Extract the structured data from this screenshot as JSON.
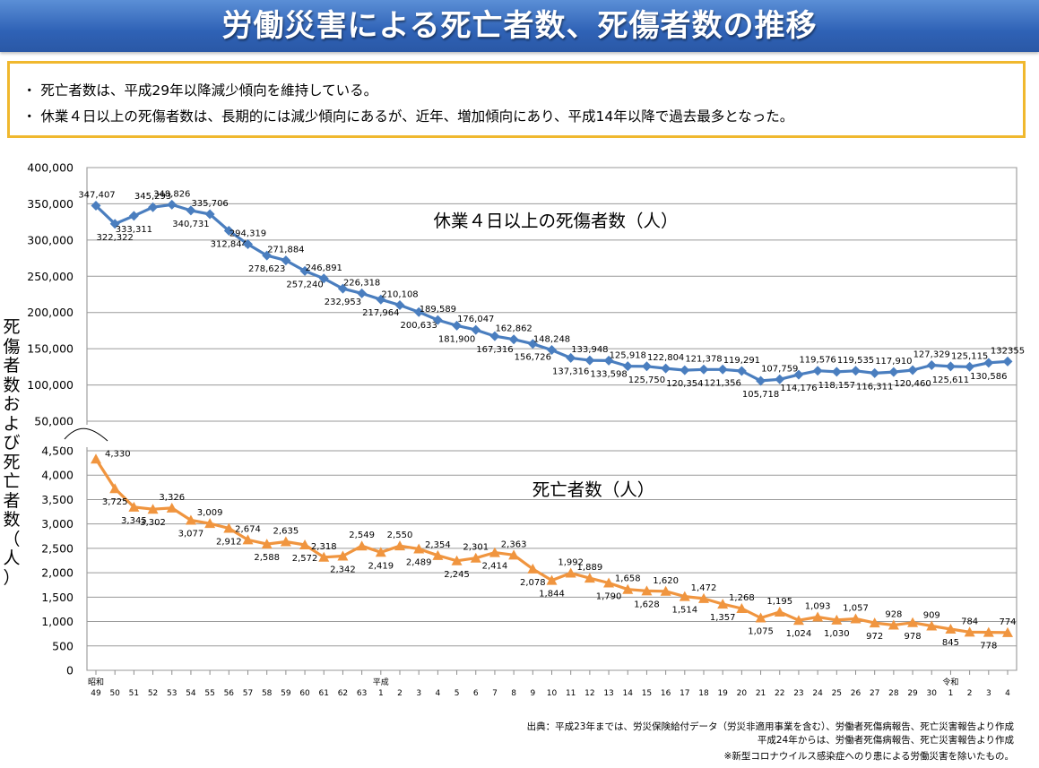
{
  "header": {
    "title": "労働災害による死亡者数、死傷者数の推移"
  },
  "summary": {
    "bullets": [
      "・ 死亡者数は、平成29年以降減少傾向を維持している。",
      "・ 休業４日以上の死傷者数は、長期的には減少傾向にあるが、近年、増加傾向にあり、平成14年以降で過去最多となった。"
    ]
  },
  "colors": {
    "injured": "#4a7ebf",
    "deaths": "#f0953f",
    "banner": "#2f62b6",
    "frame": "#f0b82e"
  },
  "chart_data": {
    "type": "line",
    "ylabel": "死傷者数および死亡者数（人）",
    "x_categories": [
      "49",
      "50",
      "51",
      "52",
      "53",
      "54",
      "55",
      "56",
      "57",
      "58",
      "59",
      "60",
      "61",
      "62",
      "63",
      "1",
      "2",
      "3",
      "4",
      "5",
      "6",
      "7",
      "8",
      "9",
      "10",
      "11",
      "12",
      "13",
      "14",
      "15",
      "16",
      "17",
      "18",
      "19",
      "20",
      "21",
      "22",
      "23",
      "24",
      "25",
      "26",
      "27",
      "28",
      "29",
      "30",
      "1",
      "2",
      "3",
      "4"
    ],
    "era_marks": [
      {
        "index": 0,
        "label": "昭和"
      },
      {
        "index": 15,
        "label": "平成"
      },
      {
        "index": 45,
        "label": "令和"
      }
    ],
    "upper_axis": {
      "ylim": [
        50000,
        400000
      ],
      "ticks": [
        "400,000",
        "350,000",
        "300,000",
        "250,000",
        "200,000",
        "150,000",
        "100,000",
        "50,000"
      ],
      "tick_values": [
        400000,
        350000,
        300000,
        250000,
        200000,
        150000,
        100000,
        50000
      ]
    },
    "lower_axis": {
      "ylim": [
        0,
        4500
      ],
      "ticks": [
        "4,500",
        "4,000",
        "3,500",
        "3,000",
        "2,500",
        "2,000",
        "1,500",
        "1,000",
        "500",
        "0"
      ],
      "tick_values": [
        4500,
        4000,
        3500,
        3000,
        2500,
        2000,
        1500,
        1000,
        500,
        0
      ]
    },
    "series": [
      {
        "name": "休業４日以上の死傷者数（人）",
        "marker": "diamond",
        "values": [
          347407,
          322322,
          333311,
          345293,
          348826,
          340731,
          335706,
          312844,
          294319,
          278623,
          271884,
          257240,
          246891,
          232953,
          226318,
          217964,
          210108,
          200633,
          189589,
          181900,
          176047,
          167316,
          162862,
          156726,
          148248,
          137316,
          133948,
          133598,
          125918,
          125750,
          122804,
          120354,
          121378,
          121356,
          119291,
          105718,
          107759,
          114176,
          119576,
          118157,
          119535,
          116311,
          117910,
          120460,
          127329,
          125611,
          125115,
          130586,
          132355
        ],
        "labels": [
          "347,407",
          "322,322",
          "333,311",
          "345,293",
          "348,826",
          "340,731",
          "335,706",
          "312,844",
          "294,319",
          "278,623",
          "271,884",
          "257,240",
          "246,891",
          "232,953",
          "226,318",
          "217,964",
          "210,108",
          "200,633",
          "189,589",
          "181,900",
          "176,047",
          "167,316",
          "162,862",
          "156,726",
          "148,248",
          "137,316",
          "133,948",
          "133,598",
          "125,918",
          "125,750",
          "122,804",
          "120,354",
          "121,378",
          "121,356",
          "119,291",
          "105,718",
          "107,759",
          "114,176",
          "119,576",
          "118,157",
          "119,535",
          "116,311",
          "117,910",
          "120,460",
          "127,329",
          "125,611",
          "125,115",
          "130,586",
          "132355"
        ],
        "label_pos": [
          "a",
          "b",
          "b",
          "a",
          "a",
          "b",
          "a",
          "b",
          "a",
          "b",
          "a",
          "b",
          "a",
          "b",
          "a",
          "b",
          "a",
          "b",
          "a",
          "b",
          "a",
          "b",
          "a",
          "b",
          "a",
          "b",
          "a",
          "b",
          "a",
          "b",
          "a",
          "b",
          "a",
          "b",
          "a",
          "b",
          "a",
          "b",
          "a",
          "b",
          "a",
          "b",
          "a",
          "b",
          "a",
          "b",
          "a",
          "b",
          "a"
        ]
      },
      {
        "name": "死亡者数（人）",
        "marker": "triangle",
        "values": [
          4330,
          3725,
          3345,
          3302,
          3326,
          3077,
          3009,
          2912,
          2674,
          2588,
          2635,
          2572,
          2318,
          2342,
          2549,
          2419,
          2550,
          2489,
          2354,
          2245,
          2301,
          2414,
          2363,
          2078,
          1844,
          1992,
          1889,
          1790,
          1658,
          1628,
          1620,
          1514,
          1472,
          1357,
          1268,
          1075,
          1195,
          1024,
          1093,
          1030,
          1057,
          972,
          928,
          978,
          909,
          845,
          784,
          778,
          774
        ],
        "labels": [
          "4,330",
          "3,725",
          "3,345",
          "3,302",
          "3,326",
          "3,077",
          "3,009",
          "2,912",
          "2,674",
          "2,588",
          "2,635",
          "2,572",
          "2,318",
          "2,342",
          "2,549",
          "2,419",
          "2,550",
          "2,489",
          "2,354",
          "2,245",
          "2,301",
          "2,414",
          "2,363",
          "2,078",
          "1,844",
          "1,992",
          "1,889",
          "1,790",
          "1,658",
          "1,628",
          "1,620",
          "1,514",
          "1,472",
          "1,357",
          "1,268",
          "1,075",
          "1,195",
          "1,024",
          "1,093",
          "1,030",
          "1,057",
          "972",
          "928",
          "978",
          "909",
          "845",
          "784",
          "778",
          "774"
        ],
        "label_pos": [
          "r",
          "b",
          "b",
          "b",
          "a",
          "b",
          "a",
          "b",
          "a",
          "b",
          "a",
          "b",
          "a",
          "b",
          "a",
          "b",
          "a",
          "b",
          "a",
          "b",
          "a",
          "b",
          "a",
          "b",
          "b",
          "a",
          "a",
          "b",
          "a",
          "b",
          "a",
          "b",
          "a",
          "b",
          "a",
          "b",
          "a",
          "b",
          "a",
          "b",
          "a",
          "b",
          "a",
          "b",
          "a",
          "b",
          "a",
          "b",
          "a"
        ]
      }
    ],
    "annotations": [
      "休業４日以上の死傷者数（人）",
      "死亡者数（人）"
    ],
    "grid": true
  },
  "footer": {
    "source_lines": [
      "出典：平成23年までは、労災保険給付データ（労災非適用事業を含む）、労働者死傷病報告、死亡災害報告より作成",
      "平成24年からは、労働者死傷病報告、死亡災害報告より作成",
      "※新型コロナウイルス感染症へのり患による労働災害を除いたもの。"
    ]
  }
}
